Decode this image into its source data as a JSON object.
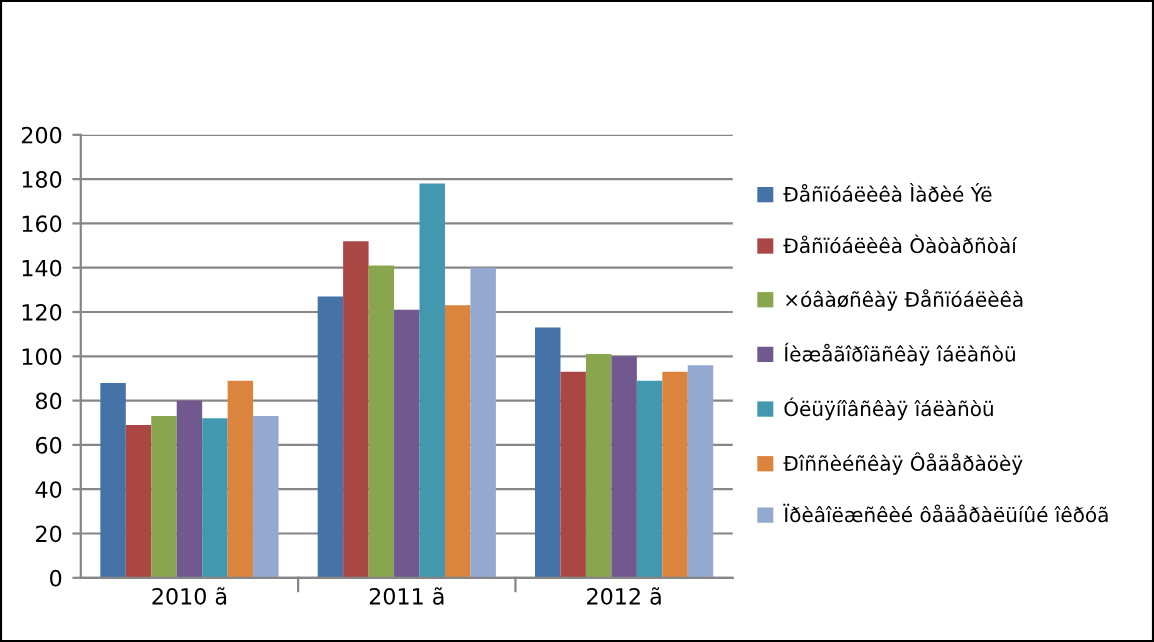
{
  "chart_data": {
    "type": "bar",
    "categories": [
      "2010 ã",
      "2011 ã",
      "2012 ã"
    ],
    "series": [
      {
        "name": "Ðåñïóáëèêà Ìàðèé Ýë",
        "color": "#4572a7",
        "values": [
          88,
          127,
          113
        ]
      },
      {
        "name": "Ðåñïóáëèêà Òàòàðñòàí",
        "color": "#aa4643",
        "values": [
          69,
          152,
          93
        ]
      },
      {
        "name": "×óâàøñêàÿ Ðåñïóáëèêà",
        "color": "#89a54e",
        "values": [
          73,
          141,
          101
        ]
      },
      {
        "name": "Íèæåãîðîäñêàÿ îáëàñòü",
        "color": "#71588f",
        "values": [
          80,
          121,
          100
        ]
      },
      {
        "name": "Óëüÿíîâñêàÿ îáëàñòü",
        "color": "#4198af",
        "values": [
          72,
          178,
          89
        ]
      },
      {
        "name": "Ðîññèéñêàÿ Ôåäåðàöèÿ",
        "color": "#db843d",
        "values": [
          89,
          123,
          93
        ]
      },
      {
        "name": "Ïðèâîëæñêèé ôåäåðàëüíûé îêðóã",
        "color": "#93a9cf",
        "values": [
          73,
          140,
          96
        ]
      }
    ],
    "ylim": [
      0,
      200
    ],
    "yticks": [
      0,
      20,
      40,
      60,
      80,
      100,
      120,
      140,
      160,
      180,
      200
    ],
    "grid": "y",
    "legend": "right"
  }
}
